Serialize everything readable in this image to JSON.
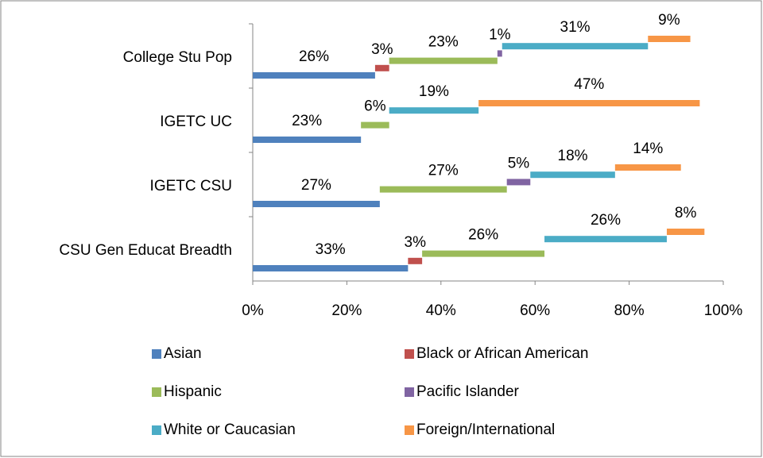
{
  "chart_data": {
    "type": "stacked_bar_horizontal",
    "categories": [
      "College Stu Pop",
      "IGETC UC",
      "IGETC CSU",
      "CSU Gen Educat Breadth"
    ],
    "series": [
      {
        "name": "Asian",
        "color": "#4f81bd",
        "values": [
          26,
          23,
          27,
          33
        ],
        "value_labels": [
          "26%",
          "23%",
          "27%",
          "33%"
        ]
      },
      {
        "name": "Black or African American",
        "color": "#c0504d",
        "values": [
          3,
          null,
          null,
          3
        ],
        "value_labels": [
          "3%",
          null,
          null,
          "3%"
        ]
      },
      {
        "name": "Hispanic",
        "color": "#9bbb59",
        "values": [
          23,
          6,
          27,
          26
        ],
        "value_labels": [
          "23%",
          "6%",
          "27%",
          "26%"
        ]
      },
      {
        "name": "Pacific Islander",
        "color": "#8064a2",
        "values": [
          1,
          null,
          5,
          null
        ],
        "value_labels": [
          "1%",
          null,
          "5%",
          null
        ]
      },
      {
        "name": "White or Caucasian",
        "color": "#4bacc6",
        "values": [
          31,
          19,
          18,
          26
        ],
        "value_labels": [
          "31%",
          "19%",
          "18%",
          "26%"
        ]
      },
      {
        "name": "Foreign/International",
        "color": "#f79646",
        "values": [
          9,
          47,
          14,
          8
        ],
        "value_labels": [
          "9%",
          "47%",
          "14%",
          "8%"
        ]
      }
    ],
    "xlim": [
      0,
      100
    ],
    "xticks": [
      {
        "value": 0,
        "label": "0%"
      },
      {
        "value": 20,
        "label": "20%"
      },
      {
        "value": 40,
        "label": "40%"
      },
      {
        "value": 60,
        "label": "60%"
      },
      {
        "value": 80,
        "label": "80%"
      },
      {
        "value": 100,
        "label": "100%"
      }
    ],
    "legend": "bottom"
  }
}
